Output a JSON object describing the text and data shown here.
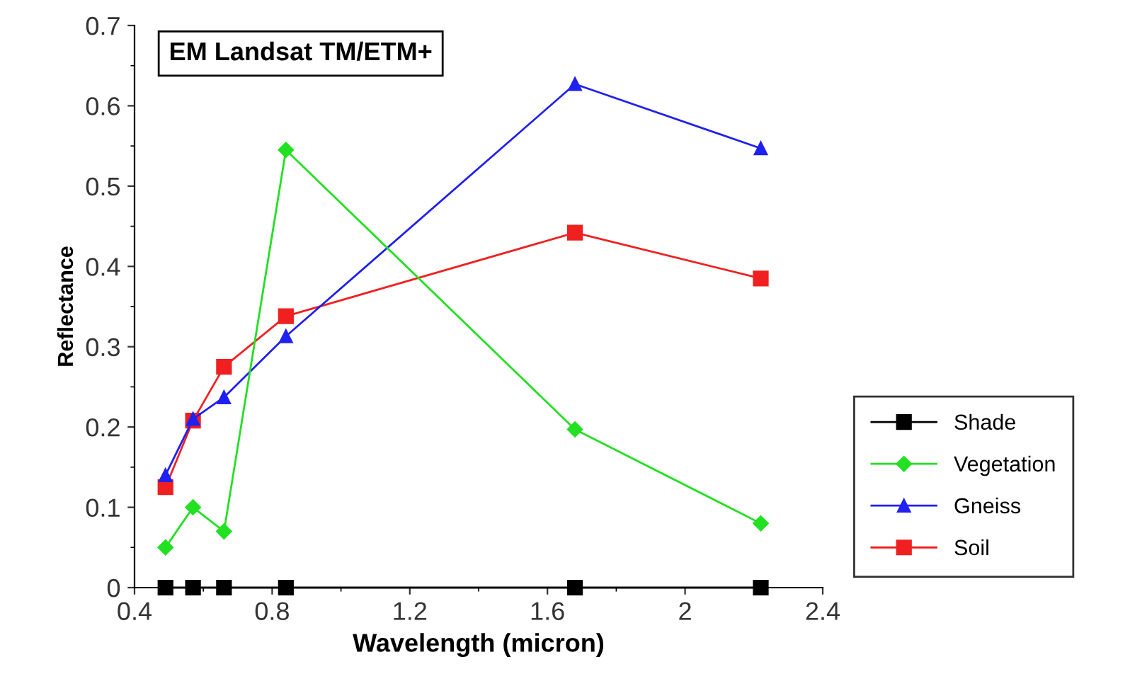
{
  "chart_data": {
    "type": "line",
    "title": "EM Landsat TM/ETM+",
    "xlabel": "Wavelength (micron)",
    "ylabel": "Reflectance",
    "x": [
      0.49,
      0.57,
      0.66,
      0.84,
      1.68,
      2.22
    ],
    "series": [
      {
        "name": "Shade",
        "color": "#000000",
        "marker": "square",
        "values": [
          0,
          0,
          0,
          0,
          0,
          0
        ]
      },
      {
        "name": "Vegetation",
        "color": "#22e022",
        "marker": "diamond",
        "values": [
          0.05,
          0.1,
          0.07,
          0.545,
          0.197,
          0.08
        ]
      },
      {
        "name": "Gneiss",
        "color": "#2020f0",
        "marker": "triangle",
        "values": [
          0.14,
          0.21,
          0.237,
          0.313,
          0.627,
          0.547
        ]
      },
      {
        "name": "Soil",
        "color": "#f02020",
        "marker": "square",
        "values": [
          0.125,
          0.208,
          0.275,
          0.338,
          0.442,
          0.385
        ]
      }
    ],
    "xlim": [
      0.4,
      2.4
    ],
    "xticks": [
      0.4,
      0.8,
      1.2,
      1.6,
      2,
      2.4
    ],
    "ylim": [
      0,
      0.7
    ],
    "yticks": [
      0,
      0.1,
      0.2,
      0.3,
      0.4,
      0.5,
      0.6,
      0.7
    ],
    "grid": false,
    "legend": "bottom right",
    "line_style": "solid"
  }
}
